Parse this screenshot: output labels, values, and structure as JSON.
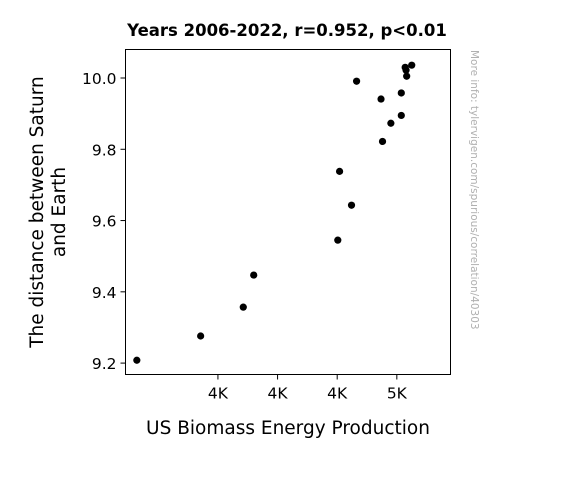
{
  "chart_data": {
    "type": "scatter",
    "title": "Years 2006-2022, r=0.952, p<0.01",
    "xlabel": "US Biomass Energy Production",
    "ylabel_lines": [
      "The distance between Saturn",
      "and Earth"
    ],
    "side_note": "More info: tylervigen.com/spurious/correlation/40303",
    "xlim": [
      3740,
      4830
    ],
    "ylim": [
      9.168,
      10.08
    ],
    "x_ticks": [
      {
        "value": 4050,
        "label": "4K"
      },
      {
        "value": 4250,
        "label": "4K"
      },
      {
        "value": 4450,
        "label": "4K"
      },
      {
        "value": 4650,
        "label": "5K"
      }
    ],
    "y_ticks": [
      {
        "value": 9.2,
        "label": "9.2"
      },
      {
        "value": 9.4,
        "label": "9.4"
      },
      {
        "value": 9.6,
        "label": "9.6"
      },
      {
        "value": 9.8,
        "label": "9.8"
      },
      {
        "value": 10.0,
        "label": "10.0"
      }
    ],
    "grid": false,
    "marker_color": "#000000",
    "points": [
      {
        "x": 3778,
        "y": 9.208
      },
      {
        "x": 3992,
        "y": 9.276
      },
      {
        "x": 4135,
        "y": 9.357
      },
      {
        "x": 4170,
        "y": 9.447
      },
      {
        "x": 4452,
        "y": 9.545
      },
      {
        "x": 4458,
        "y": 9.738
      },
      {
        "x": 4498,
        "y": 9.643
      },
      {
        "x": 4515,
        "y": 9.991
      },
      {
        "x": 4597,
        "y": 9.941
      },
      {
        "x": 4602,
        "y": 9.822
      },
      {
        "x": 4630,
        "y": 9.873
      },
      {
        "x": 4665,
        "y": 9.958
      },
      {
        "x": 4665,
        "y": 9.895
      },
      {
        "x": 4678,
        "y": 10.03
      },
      {
        "x": 4681,
        "y": 10.022
      },
      {
        "x": 4683,
        "y": 10.005
      },
      {
        "x": 4700,
        "y": 10.036
      }
    ]
  }
}
